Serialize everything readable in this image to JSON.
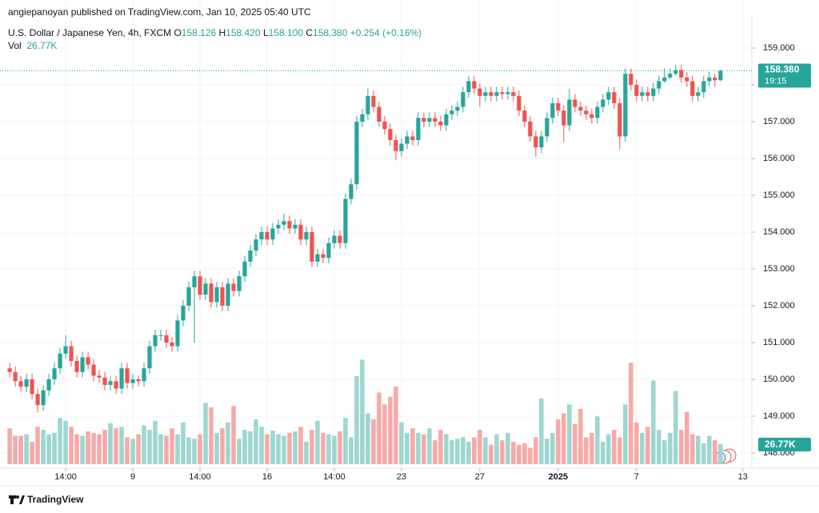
{
  "header": {
    "attribution": "angiepanoyan published on TradingView.com, Jan 10, 2025 05:40 UTC"
  },
  "legend": {
    "symbol": "U.S. Dollar / Japanese Yen, 4h, FXCM",
    "items": [
      {
        "key": "O",
        "value": "158.126"
      },
      {
        "key": "H",
        "value": "158.420"
      },
      {
        "key": "L",
        "value": "158.100"
      },
      {
        "key": "C",
        "value": "158.380"
      }
    ],
    "change": "+0.254 (+0.16%)",
    "volume_key": "Vol",
    "volume_value": "26.77K"
  },
  "chart_data": {
    "type": "candlestick",
    "up_color": "#26a69a",
    "down_color": "#ef5350",
    "volume_up_color": "#9ed6d0",
    "volume_down_color": "#f6aaa8",
    "xlim": [
      -0.3,
      132.6
    ],
    "xticks": [
      {
        "value": 10,
        "label": "14:00"
      },
      {
        "value": 22,
        "label": "9"
      },
      {
        "value": 34,
        "label": "14:00"
      },
      {
        "value": 46,
        "label": "16"
      },
      {
        "value": 58,
        "label": "14:00"
      },
      {
        "value": 70,
        "label": "23"
      },
      {
        "value": 84,
        "label": "27"
      },
      {
        "value": 98,
        "label": "2025"
      },
      {
        "value": 112,
        "label": "7"
      },
      {
        "value": 131,
        "label": "13"
      }
    ],
    "ylim": [
      147.587,
      159.87
    ],
    "yticks": [
      {
        "value": 148,
        "label": "148.000"
      },
      {
        "value": 149,
        "label": "149.000"
      },
      {
        "value": 150,
        "label": "150.000"
      },
      {
        "value": 151,
        "label": "151.000"
      },
      {
        "value": 152,
        "label": "152.000"
      },
      {
        "value": 153,
        "label": "153.000"
      },
      {
        "value": 154,
        "label": "154.000"
      },
      {
        "value": 155,
        "label": "155.000"
      },
      {
        "value": 156,
        "label": "156.000"
      },
      {
        "value": 157,
        "label": "157.000"
      },
      {
        "value": 158,
        "label": "158.000"
      },
      {
        "value": 159,
        "label": "159.000"
      }
    ],
    "grid": true,
    "volume_lim": [
      0,
      150
    ],
    "open": [
      150.3,
      150.2,
      149.95,
      149.8,
      150.0,
      149.6,
      149.3,
      149.7,
      150.0,
      150.3,
      150.7,
      150.9,
      150.5,
      150.2,
      150.6,
      150.4,
      150.1,
      150.05,
      149.85,
      149.95,
      149.75,
      150.3,
      149.9,
      150.0,
      149.95,
      150.3,
      150.9,
      151.2,
      151.2,
      151.0,
      150.9,
      151.6,
      152.0,
      152.5,
      152.8,
      152.3,
      152.6,
      152.1,
      152.5,
      152.0,
      152.6,
      152.4,
      152.8,
      153.2,
      153.5,
      153.8,
      154.0,
      153.8,
      154.1,
      154.2,
      154.3,
      154.1,
      154.2,
      153.8,
      154.0,
      153.2,
      153.4,
      153.3,
      153.7,
      153.9,
      153.7,
      154.9,
      155.3,
      157.0,
      157.2,
      157.7,
      157.4,
      157.0,
      156.8,
      156.5,
      156.2,
      156.4,
      156.6,
      156.5,
      157.1,
      157.0,
      157.1,
      157.0,
      156.9,
      157.2,
      157.3,
      157.4,
      157.8,
      158.1,
      157.9,
      157.7,
      157.8,
      157.7,
      157.8,
      157.75,
      157.8,
      157.7,
      157.3,
      157.0,
      156.6,
      156.3,
      156.6,
      157.1,
      157.5,
      157.3,
      156.9,
      157.6,
      157.4,
      157.3,
      157.2,
      157.1,
      157.4,
      157.6,
      157.8,
      157.5,
      156.6,
      158.3,
      158.0,
      157.7,
      157.8,
      157.7,
      157.9,
      158.1,
      158.2,
      158.3,
      158.4,
      158.2,
      158.1,
      157.7,
      157.8,
      158.1,
      158.2,
      158.126
    ],
    "high": [
      150.45,
      150.35,
      150.1,
      150.15,
      150.15,
      149.75,
      149.85,
      150.15,
      150.45,
      150.85,
      151.2,
      151.05,
      150.65,
      150.75,
      150.75,
      150.55,
      150.25,
      150.2,
      150.1,
      150.1,
      150.45,
      150.45,
      150.15,
      150.1,
      150.45,
      151.05,
      151.35,
      151.35,
      151.35,
      151.15,
      151.75,
      152.15,
      152.65,
      152.95,
      152.95,
      152.75,
      152.75,
      152.65,
      152.65,
      152.75,
      152.75,
      152.95,
      153.35,
      153.65,
      153.95,
      154.15,
      154.15,
      154.25,
      154.35,
      154.5,
      154.45,
      154.35,
      154.35,
      154.15,
      154.15,
      153.55,
      153.55,
      153.85,
      154.05,
      154.05,
      155.05,
      155.45,
      157.15,
      157.35,
      157.9,
      157.85,
      157.55,
      157.15,
      156.95,
      156.65,
      156.55,
      156.75,
      156.75,
      157.25,
      157.25,
      157.25,
      157.25,
      157.15,
      157.35,
      157.45,
      157.55,
      157.95,
      158.25,
      158.25,
      158.05,
      157.95,
      157.95,
      157.95,
      157.95,
      157.95,
      157.95,
      157.85,
      157.45,
      157.15,
      156.75,
      156.75,
      157.25,
      157.65,
      157.65,
      157.45,
      157.9,
      157.75,
      157.55,
      157.45,
      157.35,
      157.55,
      157.75,
      157.95,
      157.95,
      157.65,
      158.45,
      158.45,
      158.15,
      157.95,
      157.95,
      158.05,
      158.25,
      158.45,
      158.45,
      158.55,
      158.55,
      158.35,
      158.25,
      157.95,
      158.25,
      158.35,
      158.3,
      158.42
    ],
    "low": [
      150.05,
      149.8,
      149.65,
      149.65,
      149.45,
      149.1,
      149.15,
      149.55,
      149.85,
      150.15,
      150.55,
      150.35,
      150.05,
      150.05,
      150.25,
      149.95,
      149.9,
      149.7,
      149.7,
      149.6,
      149.6,
      149.75,
      149.75,
      149.8,
      149.8,
      150.15,
      150.75,
      151.05,
      150.85,
      150.75,
      150.75,
      151.45,
      151.85,
      151.0,
      152.15,
      152.15,
      151.95,
      151.95,
      151.85,
      151.85,
      152.25,
      152.25,
      152.65,
      153.05,
      153.35,
      153.65,
      153.65,
      153.65,
      153.95,
      154.05,
      153.95,
      153.95,
      153.65,
      153.65,
      153.05,
      153.05,
      153.15,
      153.15,
      153.55,
      153.55,
      153.55,
      154.75,
      155.15,
      156.85,
      157.05,
      157.25,
      156.85,
      156.65,
      156.35,
      155.95,
      156.05,
      156.25,
      156.35,
      156.35,
      156.85,
      156.85,
      156.85,
      156.75,
      156.75,
      157.05,
      157.15,
      157.25,
      157.65,
      157.75,
      157.4,
      157.55,
      157.55,
      157.55,
      157.6,
      157.6,
      157.55,
      157.15,
      156.85,
      156.45,
      156.05,
      156.15,
      156.45,
      156.95,
      157.15,
      156.45,
      156.75,
      157.25,
      157.15,
      157.05,
      156.95,
      156.95,
      157.25,
      157.45,
      157.35,
      156.25,
      156.45,
      157.85,
      157.55,
      157.55,
      157.55,
      157.55,
      157.75,
      158.05,
      158.15,
      158.25,
      158.05,
      157.95,
      157.55,
      157.55,
      157.65,
      157.95,
      157.95,
      158.1
    ],
    "close": [
      150.2,
      149.95,
      149.8,
      150.0,
      149.6,
      149.3,
      149.7,
      150.0,
      150.3,
      150.7,
      150.9,
      150.5,
      150.2,
      150.6,
      150.4,
      150.1,
      150.05,
      149.85,
      149.95,
      149.75,
      150.3,
      149.9,
      150.0,
      149.95,
      150.3,
      150.9,
      151.2,
      151.2,
      151.0,
      150.9,
      151.6,
      152.0,
      152.5,
      152.8,
      152.3,
      152.6,
      152.1,
      152.5,
      152.0,
      152.6,
      152.4,
      152.8,
      153.2,
      153.5,
      153.8,
      154.0,
      153.8,
      154.1,
      154.2,
      154.3,
      154.1,
      154.2,
      153.8,
      154.0,
      153.2,
      153.4,
      153.3,
      153.7,
      153.9,
      153.7,
      154.9,
      155.3,
      157.0,
      157.2,
      157.7,
      157.4,
      157.0,
      156.8,
      156.5,
      156.2,
      156.4,
      156.6,
      156.5,
      157.1,
      157.0,
      157.1,
      157.0,
      156.9,
      157.2,
      157.3,
      157.4,
      157.8,
      158.1,
      157.9,
      157.7,
      157.8,
      157.7,
      157.8,
      157.75,
      157.8,
      157.7,
      157.3,
      157.0,
      156.6,
      156.3,
      156.6,
      157.1,
      157.5,
      157.3,
      156.9,
      157.6,
      157.4,
      157.3,
      157.2,
      157.1,
      157.4,
      157.6,
      157.8,
      157.5,
      156.6,
      158.3,
      158.0,
      157.7,
      157.8,
      157.7,
      157.9,
      158.1,
      158.2,
      158.3,
      158.4,
      158.2,
      158.1,
      157.7,
      157.8,
      158.1,
      158.2,
      158.126,
      158.38
    ],
    "volume": [
      48,
      38,
      38,
      40,
      30,
      50,
      46,
      40,
      42,
      62,
      58,
      50,
      40,
      38,
      44,
      42,
      40,
      46,
      55,
      48,
      50,
      36,
      34,
      40,
      52,
      46,
      58,
      40,
      38,
      48,
      40,
      56,
      36,
      34,
      40,
      82,
      76,
      42,
      48,
      56,
      78,
      34,
      46,
      44,
      60,
      50,
      40,
      45,
      40,
      38,
      42,
      44,
      50,
      30,
      46,
      58,
      42,
      40,
      38,
      44,
      62,
      36,
      118,
      140,
      68,
      60,
      96,
      80,
      90,
      104,
      56,
      42,
      48,
      42,
      40,
      48,
      32,
      46,
      40,
      32,
      34,
      36,
      30,
      36,
      46,
      36,
      26,
      40,
      32,
      42,
      30,
      26,
      28,
      22,
      36,
      88,
      34,
      42,
      60,
      68,
      80,
      54,
      74,
      36,
      42,
      64,
      30,
      40,
      46,
      36,
      80,
      136,
      56,
      42,
      50,
      112,
      46,
      32,
      42,
      98,
      46,
      70,
      40,
      38,
      28,
      38,
      32,
      26.77
    ],
    "last_price_label": "158.380",
    "countdown": "19:15",
    "volume_tag": "26.77K"
  },
  "footer": {
    "brand": "TradingView"
  }
}
